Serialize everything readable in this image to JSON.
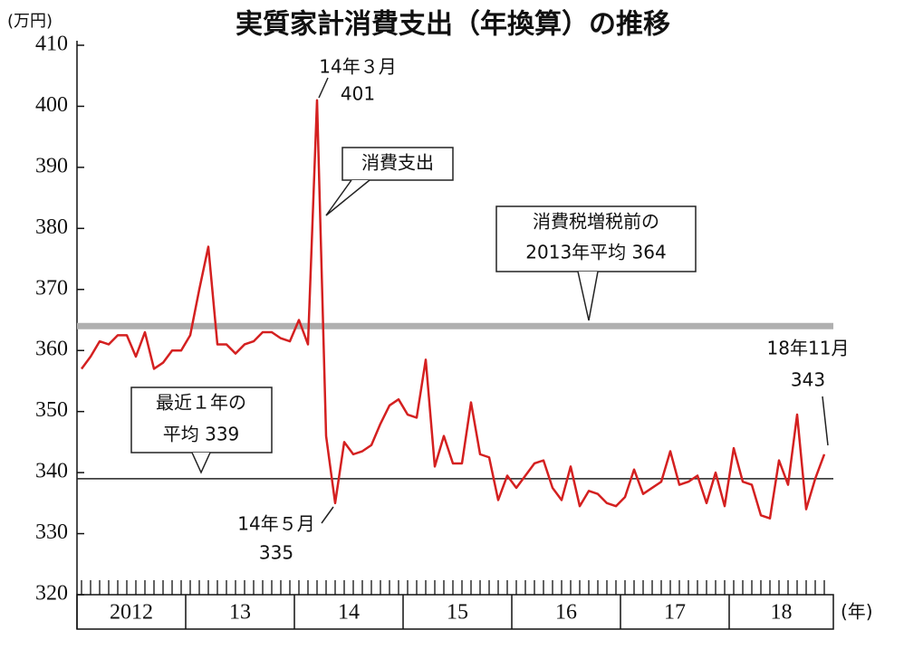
{
  "chart_data": {
    "type": "line",
    "title": "実質家計消費支出（年換算）の推移",
    "y_unit": "(万円)",
    "x_unit": "(年)",
    "year_labels": [
      "2012",
      "13",
      "14",
      "15",
      "16",
      "17",
      "18"
    ],
    "color": "#d42020",
    "values": [
      357,
      359,
      361.5,
      361,
      362.5,
      362.5,
      359,
      363,
      357,
      358,
      360,
      360,
      362.5,
      370,
      377,
      361,
      361,
      359.5,
      361,
      361.5,
      363,
      363,
      362,
      361.5,
      365,
      361,
      401,
      346,
      335,
      345,
      343,
      343.5,
      344.5,
      348,
      351,
      352,
      349.5,
      349,
      358.5,
      341,
      346,
      341.5,
      341.5,
      351.5,
      343,
      342.5,
      335.5,
      339.5,
      337.5,
      339.5,
      341.5,
      342,
      337.5,
      335.5,
      341,
      334.5,
      337,
      336.5,
      335,
      334.5,
      336,
      340.5,
      336.5,
      337.5,
      338.5,
      343.5,
      338,
      338.5,
      339.5,
      335,
      340,
      334.5,
      344,
      338.5,
      338,
      333,
      332.5,
      342,
      338,
      349.5,
      334,
      339,
      343
    ],
    "ylim": [
      320,
      410
    ],
    "yticks": [
      320,
      330,
      340,
      350,
      360,
      370,
      380,
      390,
      400,
      410
    ],
    "reference_lines": [
      {
        "value": 364,
        "color": "#b0b0b0"
      },
      {
        "value": 339,
        "color": "#222222"
      }
    ],
    "annotations": [
      {
        "lines": [
          "14年３月",
          "401"
        ]
      },
      {
        "lines": [
          "消費支出"
        ]
      },
      {
        "lines": [
          "消費税増税前の",
          "2013年平均 364"
        ]
      },
      {
        "lines": [
          "最近１年の",
          "平均 339"
        ]
      },
      {
        "lines": [
          "14年５月",
          "335"
        ]
      },
      {
        "lines": [
          "18年11月",
          "343"
        ]
      }
    ]
  }
}
